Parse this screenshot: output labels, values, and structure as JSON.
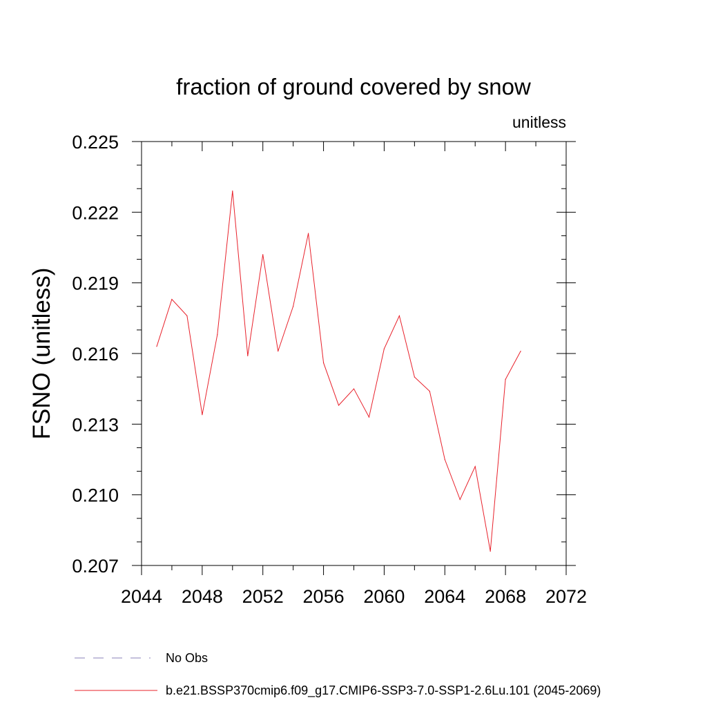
{
  "chart_data": {
    "type": "line",
    "title": "fraction of ground covered by snow",
    "units_label": "unitless",
    "ylabel": "FSNO  (unitless)",
    "xlabel": "",
    "xlim": [
      2044,
      2072
    ],
    "ylim": [
      0.207,
      0.225
    ],
    "x_major_ticks": [
      2044,
      2048,
      2052,
      2056,
      2060,
      2064,
      2068,
      2072
    ],
    "x_minor_step": 2,
    "y_major_ticks": [
      "0.207",
      "0.210",
      "0.213",
      "0.216",
      "0.219",
      "0.222",
      "0.225"
    ],
    "y_minor_step": 0.001,
    "grid": false,
    "series": [
      {
        "name": "b.e21.BSSP370cmip6.f09_g17.CMIP6-SSP3-7.0-SSP1-2.6Lu.101 (2045-2069)",
        "color": "#e8202a",
        "style": "solid",
        "x": [
          2045,
          2046,
          2047,
          2048,
          2049,
          2050,
          2051,
          2052,
          2053,
          2054,
          2055,
          2056,
          2057,
          2058,
          2059,
          2060,
          2061,
          2062,
          2063,
          2064,
          2065,
          2066,
          2067,
          2068,
          2069
        ],
        "y": [
          0.2163,
          0.2183,
          0.2176,
          0.2134,
          0.2168,
          0.2229,
          0.2159,
          0.2202,
          0.2161,
          0.218,
          0.2211,
          0.2156,
          0.2138,
          0.2145,
          0.2133,
          0.2162,
          0.2176,
          0.215,
          0.2144,
          0.2115,
          0.2098,
          0.2112,
          0.2076,
          0.2149,
          0.2161
        ]
      }
    ],
    "legend": {
      "placement": "bottom",
      "entries": [
        {
          "label": "No Obs",
          "color": "#8a80b8",
          "style": "dashed"
        },
        {
          "label": "b.e21.BSSP370cmip6.f09_g17.CMIP6-SSP3-7.0-SSP1-2.6Lu.101 (2045-2069)",
          "color": "#e8202a",
          "style": "solid"
        }
      ]
    }
  }
}
